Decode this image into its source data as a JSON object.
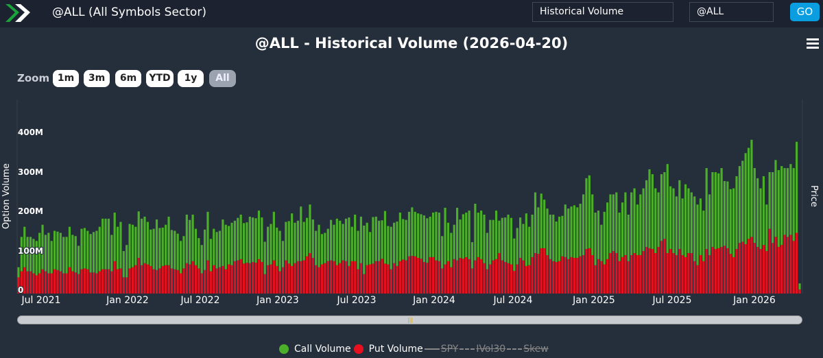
{
  "header": {
    "title": "@ALL (All Symbols Sector)",
    "report_select": "Historical Volume",
    "symbol_input": "@ALL",
    "go_label": "GO"
  },
  "chart_title": "@ALL - Historical Volume (2026-04-20)",
  "zoom": {
    "label": "Zoom",
    "buttons": [
      "1m",
      "3m",
      "6m",
      "YTD",
      "1y",
      "All"
    ],
    "active": "All"
  },
  "colors": {
    "call": "#4caf2a",
    "put": "#e8101e",
    "background": "#252e3b",
    "header": "#1c2230",
    "go": "#0a9ee0"
  },
  "chart_data": {
    "type": "bar",
    "stacked": true,
    "period": "weekly",
    "ylabel": "Option Volume",
    "y2label": "Price",
    "ylim": [
      0,
      400
    ],
    "yticks": [
      "0",
      "100M",
      "200M",
      "300M",
      "400M"
    ],
    "xticks": [
      "Jul 2021",
      "Jan 2022",
      "Jul 2022",
      "Jan 2023",
      "Jul 2023",
      "Jan 2024",
      "Jul 2024",
      "Jan 2025",
      "Jul 2025",
      "Jan 2026"
    ],
    "legend": [
      {
        "name": "Call Volume",
        "visible": true
      },
      {
        "name": "Put Volume",
        "visible": true
      },
      {
        "name": "SPY",
        "visible": false
      },
      {
        "name": "IVol30",
        "visible": false
      },
      {
        "name": "Skew",
        "visible": false
      }
    ],
    "units": "millions",
    "series": [
      {
        "name": "Put Volume",
        "values": [
          40,
          55,
          65,
          55,
          55,
          50,
          45,
          50,
          60,
          55,
          50,
          50,
          60,
          58,
          55,
          50,
          50,
          65,
          55,
          52,
          48,
          60,
          62,
          60,
          52,
          52,
          50,
          55,
          60,
          60,
          60,
          55,
          80,
          60,
          62,
          40,
          40,
          62,
          65,
          70,
          88,
          70,
          75,
          72,
          68,
          60,
          58,
          62,
          68,
          70,
          70,
          62,
          60,
          58,
          50,
          62,
          75,
          72,
          80,
          70,
          62,
          50,
          58,
          82,
          55,
          70,
          62,
          65,
          68,
          60,
          72,
          70,
          80,
          82,
          85,
          74,
          76,
          75,
          78,
          76,
          85,
          78,
          48,
          70,
          72,
          82,
          68,
          55,
          65,
          82,
          74,
          68,
          75,
          80,
          80,
          82,
          92,
          100,
          88,
          70,
          65,
          72,
          75,
          80,
          82,
          80,
          70,
          75,
          82,
          80,
          68,
          80,
          80,
          60,
          75,
          48,
          70,
          72,
          74,
          80,
          80,
          86,
          74,
          72,
          60,
          75,
          68,
          80,
          84,
          82,
          92,
          93,
          92,
          88,
          86,
          78,
          76,
          90,
          90,
          82,
          80,
          62,
          72,
          80,
          65,
          85,
          82,
          88,
          86,
          90,
          85,
          62,
          82,
          90,
          85,
          75,
          60,
          72,
          82,
          85,
          100,
          82,
          78,
          75,
          72,
          56,
          72,
          88,
          82,
          68,
          70,
          90,
          100,
          98,
          112,
          112,
          95,
          85,
          80,
          78,
          80,
          92,
          90,
          85,
          90,
          88,
          88,
          92,
          95,
          110,
          112,
          95,
          70,
          85,
          80,
          72,
          85,
          100,
          105,
          100,
          80,
          90,
          95,
          80,
          95,
          100,
          95,
          95,
          105,
          115,
          112,
          110,
          100,
          115,
          130,
          135,
          100,
          110,
          100,
          95,
          110,
          95,
          90,
          100,
          100,
          80,
          70,
          95,
          80,
          110,
          95,
          115,
          110,
          112,
          115,
          118,
          112,
          98,
          90,
          110,
          125,
          128,
          122,
          135,
          140,
          125,
          115,
          110,
          120,
          105,
          160,
          125,
          140,
          115,
          120,
          145,
          140,
          145,
          130,
          150,
          10
        ]
      },
      {
        "name": "Call Volume",
        "values": [
          25,
          85,
          100,
          85,
          85,
          85,
          85,
          100,
          110,
          90,
          100,
          80,
          95,
          95,
          95,
          90,
          90,
          100,
          90,
          90,
          70,
          100,
          100,
          95,
          95,
          100,
          105,
          110,
          125,
          125,
          125,
          90,
          120,
          105,
          115,
          65,
          80,
          110,
          105,
          95,
          115,
          115,
          115,
          105,
          90,
          100,
          125,
          100,
          95,
          100,
          120,
          95,
          95,
          90,
          80,
          80,
          120,
          110,
          115,
          90,
          75,
          70,
          100,
          120,
          80,
          90,
          90,
          90,
          115,
          110,
          95,
          105,
          100,
          105,
          110,
          100,
          100,
          115,
          110,
          110,
          120,
          110,
          80,
          95,
          100,
          120,
          95,
          100,
          65,
          95,
          105,
          130,
          100,
          100,
          135,
          95,
          95,
          120,
          95,
          85,
          105,
          75,
          75,
          80,
          100,
          90,
          115,
          105,
          90,
          105,
          120,
          85,
          115,
          95,
          115,
          120,
          105,
          80,
          115,
          110,
          100,
          95,
          130,
          95,
          105,
          100,
          110,
          120,
          100,
          100,
          110,
          120,
          110,
          110,
          110,
          115,
          110,
          100,
          110,
          120,
          120,
          80,
          140,
          95,
          85,
          85,
          130,
          95,
          110,
          110,
          120,
          65,
          140,
          110,
          120,
          120,
          90,
          110,
          100,
          120,
          80,
          105,
          110,
          120,
          115,
          80,
          90,
          100,
          90,
          130,
          95,
          105,
          150,
          115,
          135,
          120,
          115,
          110,
          115,
          100,
          110,
          100,
          130,
          125,
          125,
          130,
          125,
          130,
          150,
          175,
          180,
          150,
          130,
          120,
          90,
          130,
          140,
          145,
          140,
          150,
          120,
          135,
          155,
          115,
          155,
          160,
          125,
          150,
          155,
          165,
          195,
          185,
          160,
          135,
          165,
          165,
          220,
          155,
          160,
          145,
          170,
          140,
          180,
          160,
          150,
          160,
          150,
          140,
          125,
          200,
          150,
          185,
          190,
          185,
          195,
          160,
          165,
          160,
          170,
          180,
          190,
          200,
          225,
          225,
          240,
          185,
          170,
          150,
          170,
          115,
          140,
          175,
          190,
          190,
          195,
          165,
          170,
          175,
          180,
          225,
          15
        ]
      }
    ]
  }
}
